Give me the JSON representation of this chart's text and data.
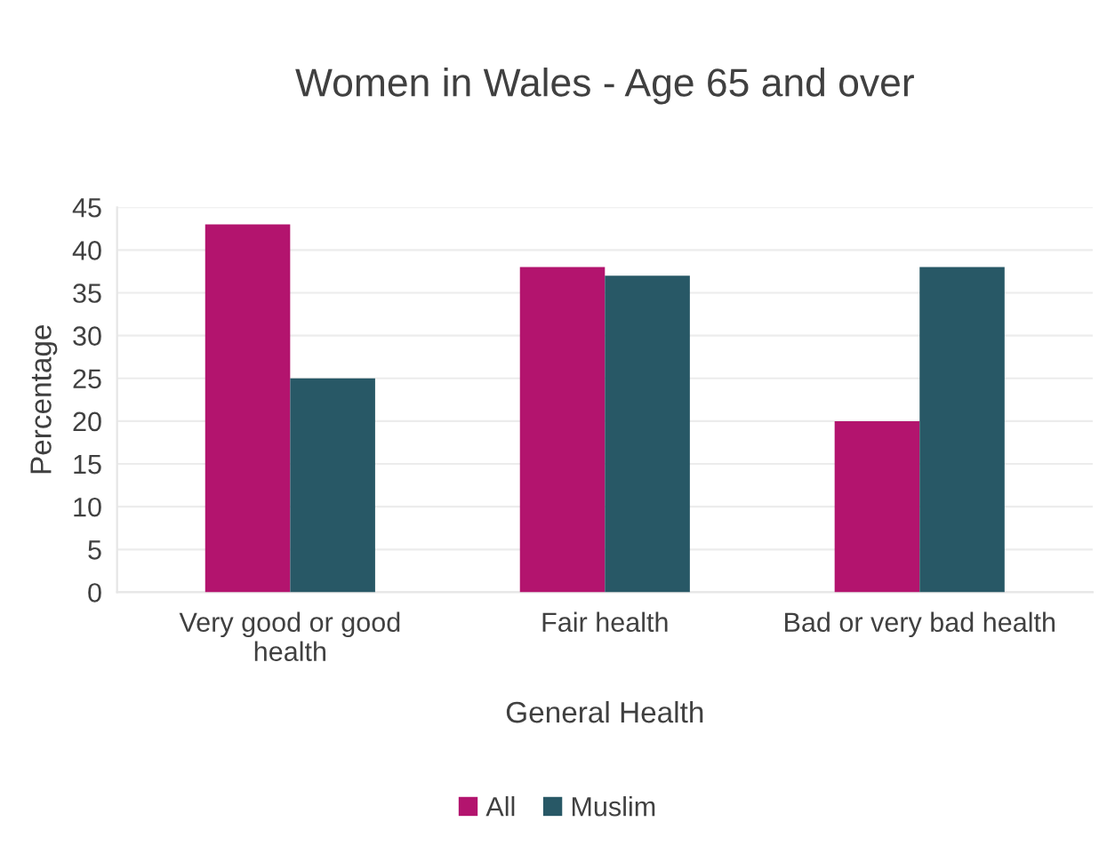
{
  "chart_data": {
    "type": "bar",
    "title": "Women in Wales - Age 65 and over",
    "xlabel": "General Health",
    "ylabel": "Percentage",
    "categories": [
      "Very good or good\nhealth",
      "Fair health",
      "Bad or very bad health"
    ],
    "series": [
      {
        "name": "All",
        "color": "#b3146e",
        "values": [
          43,
          38,
          20
        ]
      },
      {
        "name": "Muslim",
        "color": "#285866",
        "values": [
          25,
          37,
          38
        ]
      }
    ],
    "ylim": [
      0,
      45
    ],
    "yticks": [
      0,
      5,
      10,
      15,
      20,
      25,
      30,
      35,
      40,
      45
    ],
    "grid": "y",
    "legend": "bottom"
  }
}
